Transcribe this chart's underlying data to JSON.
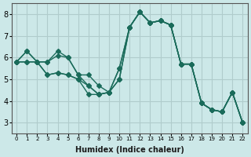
{
  "xlabel": "Humidex (Indice chaleur)",
  "bg_color": "#cce8e8",
  "grid_color": "#b0cccc",
  "line_color": "#1a6b5a",
  "series": [
    [
      5.8,
      6.3,
      5.8,
      5.8,
      6.3,
      6.0,
      5.2,
      5.2,
      4.7,
      4.4,
      5.5,
      7.4,
      8.1,
      7.6,
      7.7,
      7.5,
      5.7,
      5.7,
      3.9,
      3.6,
      3.5,
      4.4,
      3.0
    ],
    [
      5.8,
      6.3,
      5.8,
      5.8,
      6.1,
      6.0,
      5.2,
      4.7,
      4.3,
      4.4,
      5.5,
      7.4,
      8.1,
      7.6,
      7.7,
      7.5,
      5.7,
      5.7,
      3.9,
      3.6,
      3.5,
      4.4,
      3.0
    ],
    [
      5.8,
      5.8,
      5.8,
      5.2,
      5.3,
      5.2,
      5.0,
      4.7,
      4.3,
      4.4,
      5.0,
      7.4,
      8.1,
      7.6,
      7.7,
      7.5,
      5.7,
      5.7,
      3.9,
      3.6,
      3.5,
      4.4,
      3.0
    ],
    [
      5.8,
      5.8,
      5.8,
      5.2,
      5.3,
      5.2,
      5.0,
      4.3,
      4.3,
      4.4,
      5.0,
      7.4,
      8.1,
      7.6,
      7.7,
      7.5,
      5.7,
      5.7,
      3.9,
      3.6,
      3.5,
      4.4,
      3.0
    ]
  ],
  "x_values": [
    0,
    1,
    2,
    3,
    4,
    5,
    6,
    7,
    8,
    9,
    10,
    11,
    12,
    13,
    14,
    15,
    16,
    17,
    18,
    19,
    20,
    21,
    22
  ],
  "xtick_labels": [
    "0",
    "1",
    "2",
    "3",
    "4",
    "5",
    "6",
    "7",
    "8",
    "9",
    "10",
    "11",
    "12",
    "13",
    "14",
    "15",
    "16",
    "17",
    "18",
    "19",
    "20",
    "21",
    "22"
  ],
  "y_min": 2.5,
  "y_max": 8.5,
  "yticks": [
    3,
    4,
    5,
    6,
    7,
    8
  ],
  "marker": "D",
  "marker_size": 3,
  "linewidth": 1.0
}
